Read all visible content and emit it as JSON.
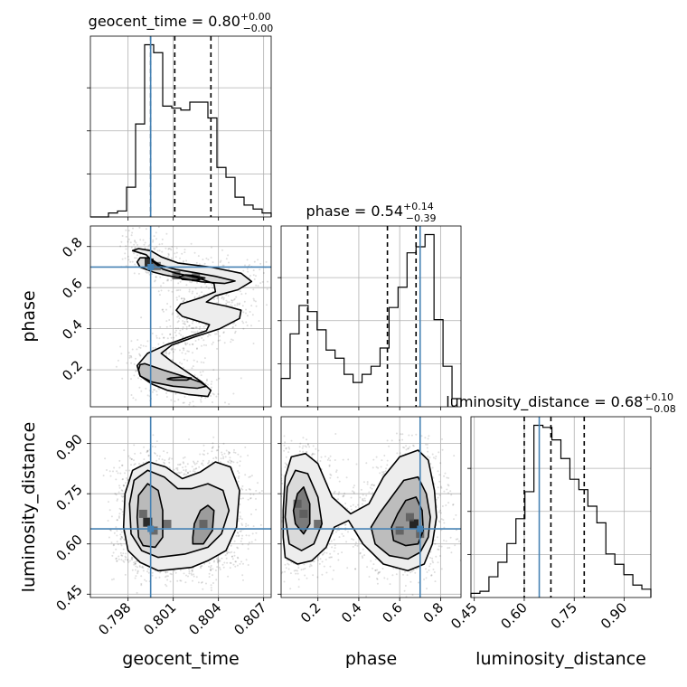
{
  "chart_data": {
    "type": "corner",
    "parameters": [
      {
        "name": "geocent_time",
        "title": {
          "prefix": "geocent_time = 0.80",
          "sup": "+0.00",
          "sub": "−0.00"
        },
        "range": [
          0.7955,
          0.8075
        ],
        "ticks": [
          0.798,
          0.801,
          0.804,
          0.807
        ],
        "tick_labels": [
          "0.798",
          "0.801",
          "0.804",
          "0.807"
        ],
        "truth": 0.7995,
        "quantiles": [
          0.7995,
          0.8011,
          0.8035
        ],
        "histogram": [
          0,
          0,
          0.02,
          0.03,
          0.15,
          0.47,
          0.87,
          0.83,
          0.56,
          0.55,
          0.54,
          0.58,
          0.58,
          0.5,
          0.25,
          0.2,
          0.1,
          0.06,
          0.04,
          0.02
        ]
      },
      {
        "name": "phase",
        "title": {
          "prefix": "phase = 0.54",
          "sup": "+0.14",
          "sub": "−0.39"
        },
        "range": [
          0.02,
          0.9
        ],
        "ticks": [
          0.2,
          0.4,
          0.6,
          0.8
        ],
        "tick_labels": [
          "0.2",
          "0.4",
          "0.6",
          "0.8"
        ],
        "truth": 0.7,
        "quantiles": [
          0.15,
          0.54,
          0.68
        ],
        "histogram": [
          0.14,
          0.36,
          0.5,
          0.47,
          0.38,
          0.28,
          0.24,
          0.16,
          0.12,
          0.16,
          0.2,
          0.29,
          0.49,
          0.59,
          0.76,
          0.79,
          0.85,
          0.43,
          0.2,
          0.04
        ]
      },
      {
        "name": "luminosity_distance",
        "title": {
          "prefix": "luminosity_distance = 0.68",
          "sup": "+0.10",
          "sub": "−0.08"
        },
        "range": [
          0.44,
          0.98
        ],
        "ticks": [
          0.45,
          0.6,
          0.75,
          0.9
        ],
        "tick_labels": [
          "0.45",
          "0.60",
          "0.75",
          "0.90"
        ],
        "truth": 0.645,
        "quantiles": [
          0.6,
          0.68,
          0.78
        ],
        "histogram": [
          0.02,
          0.03,
          0.1,
          0.17,
          0.26,
          0.38,
          0.51,
          0.83,
          0.82,
          0.76,
          0.67,
          0.57,
          0.52,
          0.44,
          0.36,
          0.21,
          0.16,
          0.11,
          0.06,
          0.04
        ]
      }
    ],
    "contours": {
      "phase_vs_geocent_time": [
        [
          [
            0.7992,
            0.76
          ],
          [
            0.7996,
            0.73
          ],
          [
            0.8003,
            0.69
          ],
          [
            0.8012,
            0.67
          ],
          [
            0.8025,
            0.65
          ],
          [
            0.8037,
            0.62
          ],
          [
            0.8038,
            0.58
          ],
          [
            0.8028,
            0.55
          ],
          [
            0.8015,
            0.52
          ],
          [
            0.8012,
            0.49
          ],
          [
            0.8016,
            0.46
          ],
          [
            0.8025,
            0.44
          ],
          [
            0.8034,
            0.42
          ],
          [
            0.8032,
            0.39
          ],
          [
            0.802,
            0.36
          ],
          [
            0.8005,
            0.32
          ],
          [
            0.7993,
            0.28
          ],
          [
            0.7986,
            0.22
          ],
          [
            0.7988,
            0.17
          ],
          [
            0.7996,
            0.13
          ],
          [
            0.8006,
            0.1
          ],
          [
            0.802,
            0.08
          ],
          [
            0.8033,
            0.07
          ],
          [
            0.8035,
            0.1
          ],
          [
            0.8029,
            0.14
          ],
          [
            0.8019,
            0.19
          ],
          [
            0.8009,
            0.24
          ],
          [
            0.8002,
            0.28
          ],
          [
            0.8009,
            0.32
          ],
          [
            0.8024,
            0.36
          ],
          [
            0.8041,
            0.4
          ],
          [
            0.8054,
            0.45
          ],
          [
            0.8055,
            0.49
          ],
          [
            0.8045,
            0.51
          ],
          [
            0.8032,
            0.53
          ],
          [
            0.8038,
            0.56
          ],
          [
            0.8053,
            0.59
          ],
          [
            0.8062,
            0.63
          ],
          [
            0.8055,
            0.67
          ],
          [
            0.8035,
            0.7
          ],
          [
            0.8013,
            0.72
          ],
          [
            0.8002,
            0.75
          ],
          [
            0.7995,
            0.78
          ],
          [
            0.7987,
            0.79
          ],
          [
            0.7983,
            0.78
          ]
        ],
        [
          [
            0.7994,
            0.745
          ],
          [
            0.8001,
            0.71
          ],
          [
            0.8012,
            0.688
          ],
          [
            0.8025,
            0.672
          ],
          [
            0.8038,
            0.655
          ],
          [
            0.8051,
            0.632
          ],
          [
            0.8044,
            0.62
          ],
          [
            0.8029,
            0.628
          ],
          [
            0.8016,
            0.645
          ],
          [
            0.8004,
            0.662
          ],
          [
            0.7997,
            0.675
          ],
          [
            0.7988,
            0.7
          ],
          [
            0.7986,
            0.725
          ],
          [
            0.7988,
            0.745
          ]
        ],
        [
          [
            0.7991,
            0.23
          ],
          [
            0.8003,
            0.2
          ],
          [
            0.8016,
            0.17
          ],
          [
            0.8028,
            0.14
          ],
          [
            0.8032,
            0.12
          ],
          [
            0.8026,
            0.11
          ],
          [
            0.801,
            0.12
          ],
          [
            0.7996,
            0.14
          ],
          [
            0.7988,
            0.17
          ],
          [
            0.7987,
            0.2
          ],
          [
            0.7988,
            0.225
          ]
        ],
        [
          [
            0.8008,
            0.16
          ],
          [
            0.8016,
            0.165
          ],
          [
            0.8022,
            0.16
          ],
          [
            0.8019,
            0.15
          ],
          [
            0.801,
            0.15
          ],
          [
            0.8006,
            0.155
          ]
        ],
        [
          [
            0.8022,
            0.66
          ],
          [
            0.8031,
            0.647
          ],
          [
            0.8025,
            0.635
          ],
          [
            0.8016,
            0.64
          ],
          [
            0.8014,
            0.652
          ],
          [
            0.8018,
            0.662
          ]
        ]
      ],
      "luminosity_distance_vs_geocent_time": [
        [
          [
            0.7988,
            0.545
          ],
          [
            0.8,
            0.52
          ],
          [
            0.8022,
            0.53
          ],
          [
            0.8033,
            0.55
          ],
          [
            0.8045,
            0.58
          ],
          [
            0.8052,
            0.65
          ],
          [
            0.8054,
            0.76
          ],
          [
            0.8048,
            0.83
          ],
          [
            0.8038,
            0.845
          ],
          [
            0.8028,
            0.815
          ],
          [
            0.8016,
            0.795
          ],
          [
            0.8005,
            0.83
          ],
          [
            0.7994,
            0.845
          ],
          [
            0.7983,
            0.82
          ],
          [
            0.7978,
            0.75
          ],
          [
            0.7977,
            0.65
          ],
          [
            0.798,
            0.58
          ]
        ],
        [
          [
            0.7989,
            0.58
          ],
          [
            0.8,
            0.56
          ],
          [
            0.8018,
            0.57
          ],
          [
            0.8033,
            0.59
          ],
          [
            0.8042,
            0.63
          ],
          [
            0.8047,
            0.7
          ],
          [
            0.8043,
            0.76
          ],
          [
            0.8033,
            0.78
          ],
          [
            0.8022,
            0.765
          ],
          [
            0.8013,
            0.765
          ],
          [
            0.8004,
            0.8
          ],
          [
            0.7993,
            0.82
          ],
          [
            0.7984,
            0.79
          ],
          [
            0.7981,
            0.72
          ],
          [
            0.7982,
            0.63
          ]
        ],
        [
          [
            0.799,
            0.595
          ],
          [
            0.7998,
            0.59
          ],
          [
            0.8003,
            0.62
          ],
          [
            0.8003,
            0.7
          ],
          [
            0.8,
            0.76
          ],
          [
            0.7993,
            0.78
          ],
          [
            0.7987,
            0.745
          ],
          [
            0.7986,
            0.68
          ],
          [
            0.7987,
            0.62
          ]
        ],
        [
          [
            0.8023,
            0.6
          ],
          [
            0.803,
            0.6
          ],
          [
            0.8036,
            0.64
          ],
          [
            0.8037,
            0.7
          ],
          [
            0.8033,
            0.715
          ],
          [
            0.8028,
            0.7
          ],
          [
            0.8024,
            0.66
          ],
          [
            0.8023,
            0.62
          ]
        ]
      ],
      "luminosity_distance_vs_phase": [
        [
          [
            0.04,
            0.56
          ],
          [
            0.1,
            0.54
          ],
          [
            0.17,
            0.55
          ],
          [
            0.24,
            0.59
          ],
          [
            0.28,
            0.65
          ],
          [
            0.35,
            0.67
          ],
          [
            0.42,
            0.6
          ],
          [
            0.52,
            0.54
          ],
          [
            0.64,
            0.52
          ],
          [
            0.72,
            0.54
          ],
          [
            0.76,
            0.6
          ],
          [
            0.78,
            0.68
          ],
          [
            0.77,
            0.76
          ],
          [
            0.74,
            0.85
          ],
          [
            0.69,
            0.88
          ],
          [
            0.6,
            0.86
          ],
          [
            0.52,
            0.8
          ],
          [
            0.45,
            0.72
          ],
          [
            0.36,
            0.69
          ],
          [
            0.27,
            0.74
          ],
          [
            0.2,
            0.84
          ],
          [
            0.14,
            0.87
          ],
          [
            0.07,
            0.86
          ],
          [
            0.04,
            0.8
          ],
          [
            0.03,
            0.7
          ],
          [
            0.03,
            0.62
          ]
        ],
        [
          [
            0.06,
            0.6
          ],
          [
            0.12,
            0.58
          ],
          [
            0.18,
            0.6
          ],
          [
            0.22,
            0.66
          ],
          [
            0.2,
            0.74
          ],
          [
            0.15,
            0.81
          ],
          [
            0.09,
            0.82
          ],
          [
            0.05,
            0.77
          ],
          [
            0.04,
            0.68
          ]
        ],
        [
          [
            0.48,
            0.6
          ],
          [
            0.55,
            0.565
          ],
          [
            0.64,
            0.555
          ],
          [
            0.7,
            0.575
          ],
          [
            0.74,
            0.62
          ],
          [
            0.75,
            0.68
          ],
          [
            0.73,
            0.75
          ],
          [
            0.69,
            0.8
          ],
          [
            0.62,
            0.79
          ],
          [
            0.56,
            0.74
          ],
          [
            0.5,
            0.69
          ],
          [
            0.46,
            0.65
          ]
        ],
        [
          [
            0.57,
            0.61
          ],
          [
            0.63,
            0.595
          ],
          [
            0.69,
            0.6
          ],
          [
            0.715,
            0.64
          ],
          [
            0.71,
            0.7
          ],
          [
            0.68,
            0.74
          ],
          [
            0.63,
            0.73
          ],
          [
            0.59,
            0.69
          ],
          [
            0.56,
            0.65
          ]
        ],
        [
          [
            0.09,
            0.66
          ],
          [
            0.13,
            0.63
          ],
          [
            0.16,
            0.66
          ],
          [
            0.16,
            0.72
          ],
          [
            0.13,
            0.77
          ],
          [
            0.1,
            0.75
          ],
          [
            0.08,
            0.7
          ]
        ]
      ]
    },
    "density_hotspots": {
      "luminosity_distance_vs_geocent_time": [
        [
          0.7993,
          0.665
        ],
        [
          0.7997,
          0.64
        ],
        [
          0.799,
          0.69
        ],
        [
          0.8006,
          0.66
        ],
        [
          0.803,
          0.66
        ]
      ],
      "luminosity_distance_vs_phase": [
        [
          0.67,
          0.66
        ],
        [
          0.65,
          0.68
        ],
        [
          0.6,
          0.64
        ],
        [
          0.7,
          0.63
        ],
        [
          0.13,
          0.69
        ],
        [
          0.1,
          0.72
        ],
        [
          0.2,
          0.66
        ]
      ],
      "phase_vs_geocent_time": [
        [
          0.7994,
          0.72
        ],
        [
          0.7999,
          0.705
        ],
        [
          0.8012,
          0.66
        ],
        [
          0.8025,
          0.65
        ]
      ]
    }
  }
}
